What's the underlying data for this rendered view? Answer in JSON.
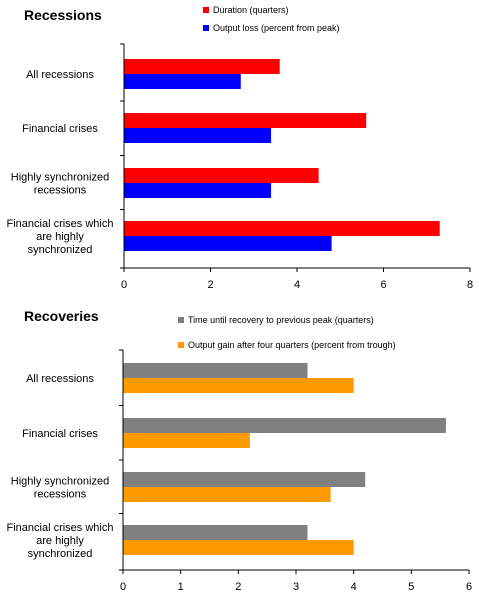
{
  "chart_data": [
    {
      "type": "bar",
      "orientation": "horizontal",
      "title": "Recessions",
      "categories": [
        "All recessions",
        "Financial crises",
        "Highly synchronized recessions",
        "Financial crises which are highly synchronized"
      ],
      "category_lines": [
        [
          "All recessions"
        ],
        [
          "Financial crises"
        ],
        [
          "Highly synchronized",
          "recessions"
        ],
        [
          "Financial crises which",
          "are highly",
          "synchronized"
        ]
      ],
      "series": [
        {
          "name": "Duration (quarters)",
          "color": "#ff0000",
          "values": [
            3.6,
            5.6,
            4.5,
            7.3
          ]
        },
        {
          "name": "Output loss (percent from peak)",
          "color": "#0000ff",
          "values": [
            2.7,
            3.4,
            3.4,
            4.8
          ]
        }
      ],
      "xlim": [
        0,
        8
      ],
      "xticks": [
        "0",
        "2",
        "4",
        "6",
        "8"
      ],
      "xlabel": "",
      "ylabel": "",
      "grid": false,
      "legend_position": "top"
    },
    {
      "type": "bar",
      "orientation": "horizontal",
      "title": "Recoveries",
      "categories": [
        "All recessions",
        "Financial crises",
        "Highly synchronized recessions",
        "Financial crises which are highly synchronized"
      ],
      "category_lines": [
        [
          "All recessions"
        ],
        [
          "Financial crises"
        ],
        [
          "Highly synchronized",
          "recessions"
        ],
        [
          "Financial crises which",
          "are highly",
          "synchronized"
        ]
      ],
      "series": [
        {
          "name": "Time until recovery to previous peak (quarters)",
          "color": "#808080",
          "values": [
            3.2,
            5.6,
            4.2,
            3.2
          ]
        },
        {
          "name": "Output gain after four quarters (percent from trough)",
          "color": "#ff9900",
          "values": [
            4.0,
            2.2,
            3.6,
            4.0
          ]
        }
      ],
      "xlim": [
        0,
        6
      ],
      "xticks": [
        "0",
        "1",
        "2",
        "3",
        "4",
        "5",
        "6"
      ],
      "xlabel": "",
      "ylabel": "",
      "grid": false,
      "legend_position": "top"
    }
  ]
}
